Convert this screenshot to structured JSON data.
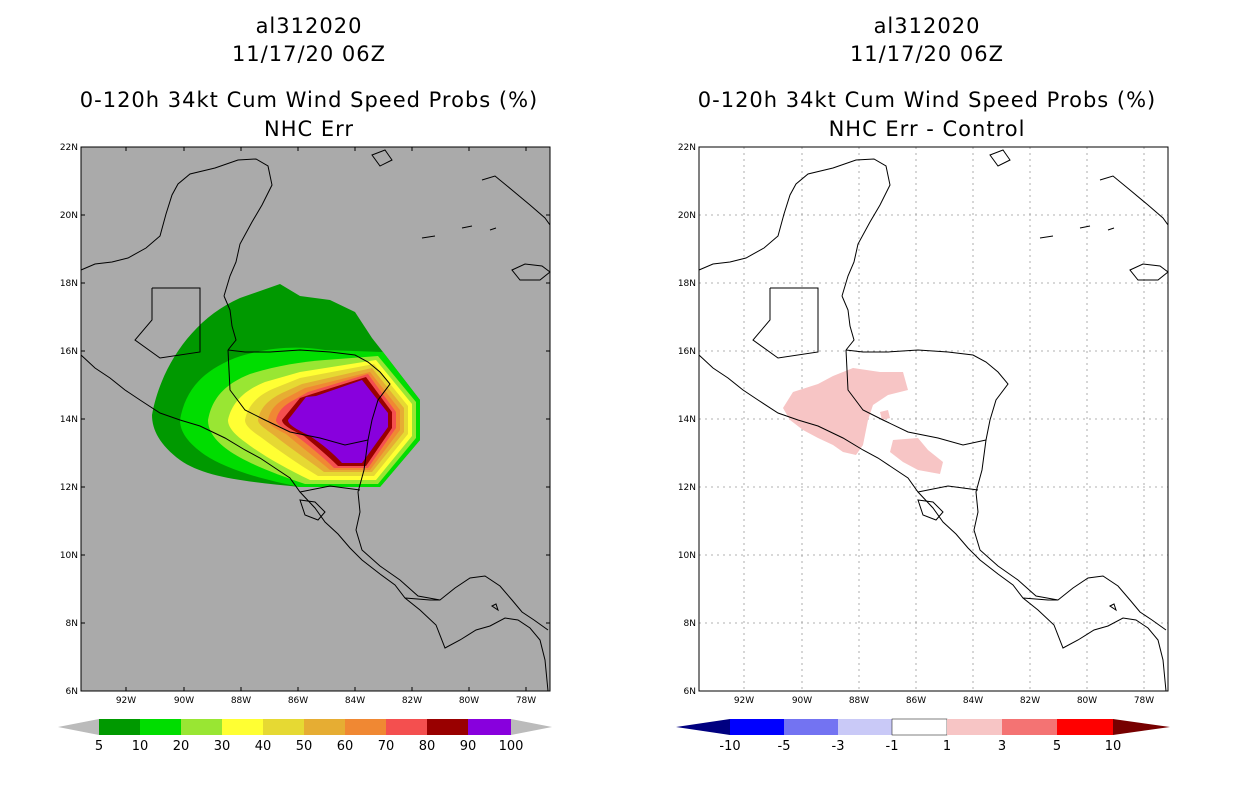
{
  "panels": [
    {
      "storm_id": "al312020",
      "datetime": "11/17/20 06Z",
      "product": "0-120h 34kt Cum Wind Speed Probs (%)",
      "subtitle": "NHC Err",
      "colorbar": {
        "labels": [
          "5",
          "10",
          "20",
          "30",
          "40",
          "50",
          "60",
          "70",
          "80",
          "90",
          "100"
        ],
        "colors": [
          "#009900",
          "#00dd00",
          "#99e633",
          "#ffff33",
          "#e6d933",
          "#e6ad33",
          "#f08833",
          "#f44f4f",
          "#990000",
          "#8800dd"
        ],
        "end_color": "#bbbbbb"
      },
      "background_color": "#aaaaaa"
    },
    {
      "storm_id": "al312020",
      "datetime": "11/17/20 06Z",
      "product": "0-120h 34kt Cum Wind Speed Probs (%)",
      "subtitle": "NHC Err - Control",
      "colorbar": {
        "labels": [
          "-10",
          "-5",
          "-3",
          "-1",
          "1",
          "3",
          "5",
          "10"
        ],
        "colors": [
          "#0000b0",
          "#0000ff",
          "#7373f2",
          "#c9c9f7",
          "#ffffff",
          "#f7c5c5",
          "#f47373",
          "#ff0000",
          "#990000"
        ],
        "left_color": "#000080",
        "right_color": "#770000"
      },
      "background_color": "#ffffff"
    }
  ],
  "axes": {
    "lat_labels": [
      "22N",
      "20N",
      "18N",
      "16N",
      "14N",
      "12N",
      "10N",
      "8N",
      "6N"
    ],
    "lon_labels": [
      "92W",
      "90W",
      "88W",
      "86W",
      "84W",
      "82W",
      "80W",
      "78W"
    ]
  },
  "map_features": {
    "countries": [
      "Mexico",
      "Guatemala",
      "Belize",
      "Honduras",
      "El Salvador",
      "Nicaragua",
      "Costa Rica",
      "Panama"
    ],
    "islands": [
      "Cuba",
      "Cayman Islands",
      "Jamaica"
    ]
  }
}
